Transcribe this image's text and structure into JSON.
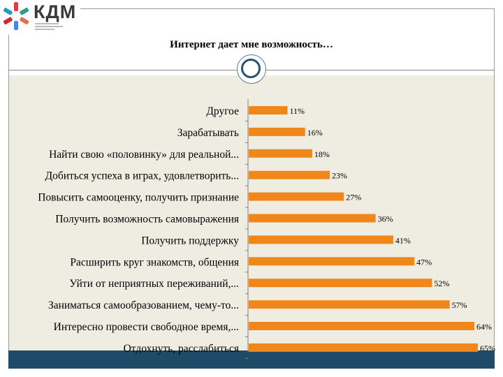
{
  "logo": {
    "text": "КДМ",
    "icon": "snowflake-pinwheel-icon"
  },
  "slide": {
    "title": "Интернет дает мне возможность…"
  },
  "colors": {
    "bar": "#f0871a",
    "plot_bg": "#efede2",
    "footer": "#1f4a68",
    "accent_ring": "#27536f"
  },
  "chart_data": {
    "type": "bar",
    "orientation": "horizontal",
    "title": "Интернет дает мне возможность…",
    "categories": [
      "Другое",
      "Зарабатывать",
      "Найти свою «половинку» для реальной...",
      "Добиться успеха в играх, удовлетворить...",
      "Повысить самооценку, получить признание",
      "Получить возможность самовыражения",
      "Получить поддержку",
      "Расширить круг знакомств, общения",
      "Уйти от неприятных переживаний,...",
      "Заниматься самообразованием, чему-то...",
      "Интересно провести свободное время,...",
      "Отдохнуть, расслабиться"
    ],
    "values": [
      11,
      16,
      18,
      23,
      27,
      36,
      41,
      47,
      52,
      57,
      64,
      65
    ],
    "value_labels": [
      "11%",
      "16%",
      "18%",
      "23%",
      "27%",
      "36%",
      "41%",
      "47%",
      "52%",
      "57%",
      "64%",
      "65%"
    ],
    "unit": "%",
    "xlim": [
      0,
      65
    ],
    "grid": false,
    "legend": "none"
  }
}
